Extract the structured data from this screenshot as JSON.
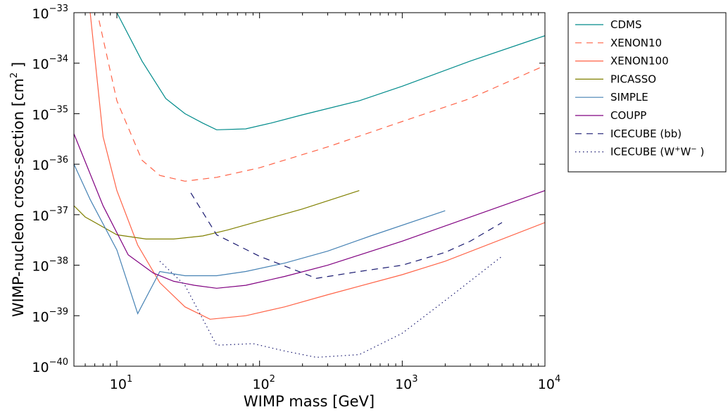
{
  "chart_data": {
    "type": "line",
    "xlabel": "WIMP mass [GeV]",
    "ylabel": "WIMP-nucleon cross-section [cm",
    "ylabel_sup": "2",
    "ylabel_end": " ]",
    "xscale": "log",
    "yscale": "log",
    "xlim": [
      5,
      10000
    ],
    "ylim": [
      1e-40,
      1e-33
    ],
    "x_ticks": [
      {
        "base": "10",
        "exp": "1"
      },
      {
        "base": "10",
        "exp": "2"
      },
      {
        "base": "10",
        "exp": "3"
      },
      {
        "base": "10",
        "exp": "4"
      }
    ],
    "y_ticks": [
      {
        "base": "10",
        "exp": "−40"
      },
      {
        "base": "10",
        "exp": "−39"
      },
      {
        "base": "10",
        "exp": "−38"
      },
      {
        "base": "10",
        "exp": "−37"
      },
      {
        "base": "10",
        "exp": "−36"
      },
      {
        "base": "10",
        "exp": "−35"
      },
      {
        "base": "10",
        "exp": "−34"
      },
      {
        "base": "10",
        "exp": "−33"
      }
    ],
    "grid": false,
    "legend_position": "outside-right",
    "series": [
      {
        "name": "CDMS",
        "color": "#008b8b",
        "dash": "solid",
        "x": [
          10,
          15,
          22,
          30,
          40,
          50,
          80,
          120,
          200,
          500,
          1000,
          3000,
          10000
        ],
        "y": [
          1e-33,
          1.1e-34,
          2e-35,
          1e-35,
          6.5e-36,
          4.8e-36,
          5e-36,
          6.5e-36,
          9.5e-36,
          1.8e-35,
          3.5e-35,
          1.1e-34,
          3.5e-34
        ]
      },
      {
        "name": "XENON10",
        "color": "#ff6347",
        "dash": "dashed",
        "x": [
          7.5,
          10,
          15,
          20,
          30,
          50,
          100,
          300,
          1000,
          3000,
          10000
        ],
        "y": [
          7e-34,
          1.8e-35,
          1.2e-36,
          6e-37,
          4.6e-37,
          5.5e-37,
          8.5e-37,
          2.2e-36,
          7e-36,
          2e-35,
          9e-35
        ]
      },
      {
        "name": "XENON100",
        "color": "#ff6347",
        "dash": "solid",
        "x": [
          6.5,
          8,
          10,
          14,
          20,
          30,
          45,
          80,
          150,
          300,
          1000,
          2000,
          10000
        ],
        "y": [
          1e-33,
          3.5e-36,
          3e-37,
          2.5e-38,
          4.5e-39,
          1.5e-39,
          8.5e-40,
          1e-39,
          1.5e-39,
          2.6e-39,
          6.5e-39,
          1.2e-38,
          7e-38
        ]
      },
      {
        "name": "PICASSO",
        "color": "#808000",
        "dash": "solid",
        "x": [
          5,
          6,
          10,
          16,
          25,
          40,
          60,
          100,
          200,
          500
        ],
        "y": [
          1.5e-37,
          9e-38,
          4e-38,
          3.3e-38,
          3.3e-38,
          3.8e-38,
          5e-38,
          7.5e-38,
          1.3e-37,
          3e-37
        ]
      },
      {
        "name": "SIMPLE",
        "color": "#4682b4",
        "dash": "solid",
        "x": [
          5,
          6.5,
          10,
          14,
          20,
          30,
          50,
          80,
          150,
          300,
          600,
          2000
        ],
        "y": [
          1e-36,
          2e-37,
          2e-38,
          1.1e-39,
          7.5e-39,
          6.2e-39,
          6.2e-39,
          7.5e-39,
          1.1e-38,
          1.9e-38,
          3.8e-38,
          1.2e-37
        ]
      },
      {
        "name": "COUPP",
        "color": "#800080",
        "dash": "solid",
        "x": [
          5,
          8,
          12,
          18,
          25,
          35,
          50,
          80,
          150,
          300,
          1000,
          10000
        ],
        "y": [
          4e-36,
          1.5e-37,
          1.6e-38,
          7e-39,
          4.8e-39,
          4e-39,
          3.5e-39,
          4e-39,
          6e-39,
          1e-38,
          3e-38,
          3e-37
        ]
      },
      {
        "name": "ICECUBE (bb)",
        "color": "#191970",
        "dash": "dashed",
        "x": [
          33,
          50,
          100,
          250,
          500,
          1000,
          2000,
          3000,
          5000
        ],
        "y": [
          2.7e-37,
          4e-38,
          1.5e-38,
          5.5e-39,
          7.5e-39,
          1e-38,
          1.8e-38,
          3e-38,
          7e-38
        ]
      },
      {
        "name": "ICECUBE (W",
        "name_sup": "+",
        "name_mid": "W",
        "name_sup2": "−",
        "name_end": " )",
        "color": "#191970",
        "dash": "dotted",
        "x": [
          20,
          30,
          50,
          90,
          150,
          250,
          500,
          1000,
          2000,
          5000
        ],
        "y": [
          1.2e-38,
          4e-39,
          2.6e-40,
          2.8e-40,
          2e-40,
          1.5e-40,
          1.7e-40,
          4.5e-40,
          2e-39,
          1.5e-38
        ]
      }
    ]
  }
}
